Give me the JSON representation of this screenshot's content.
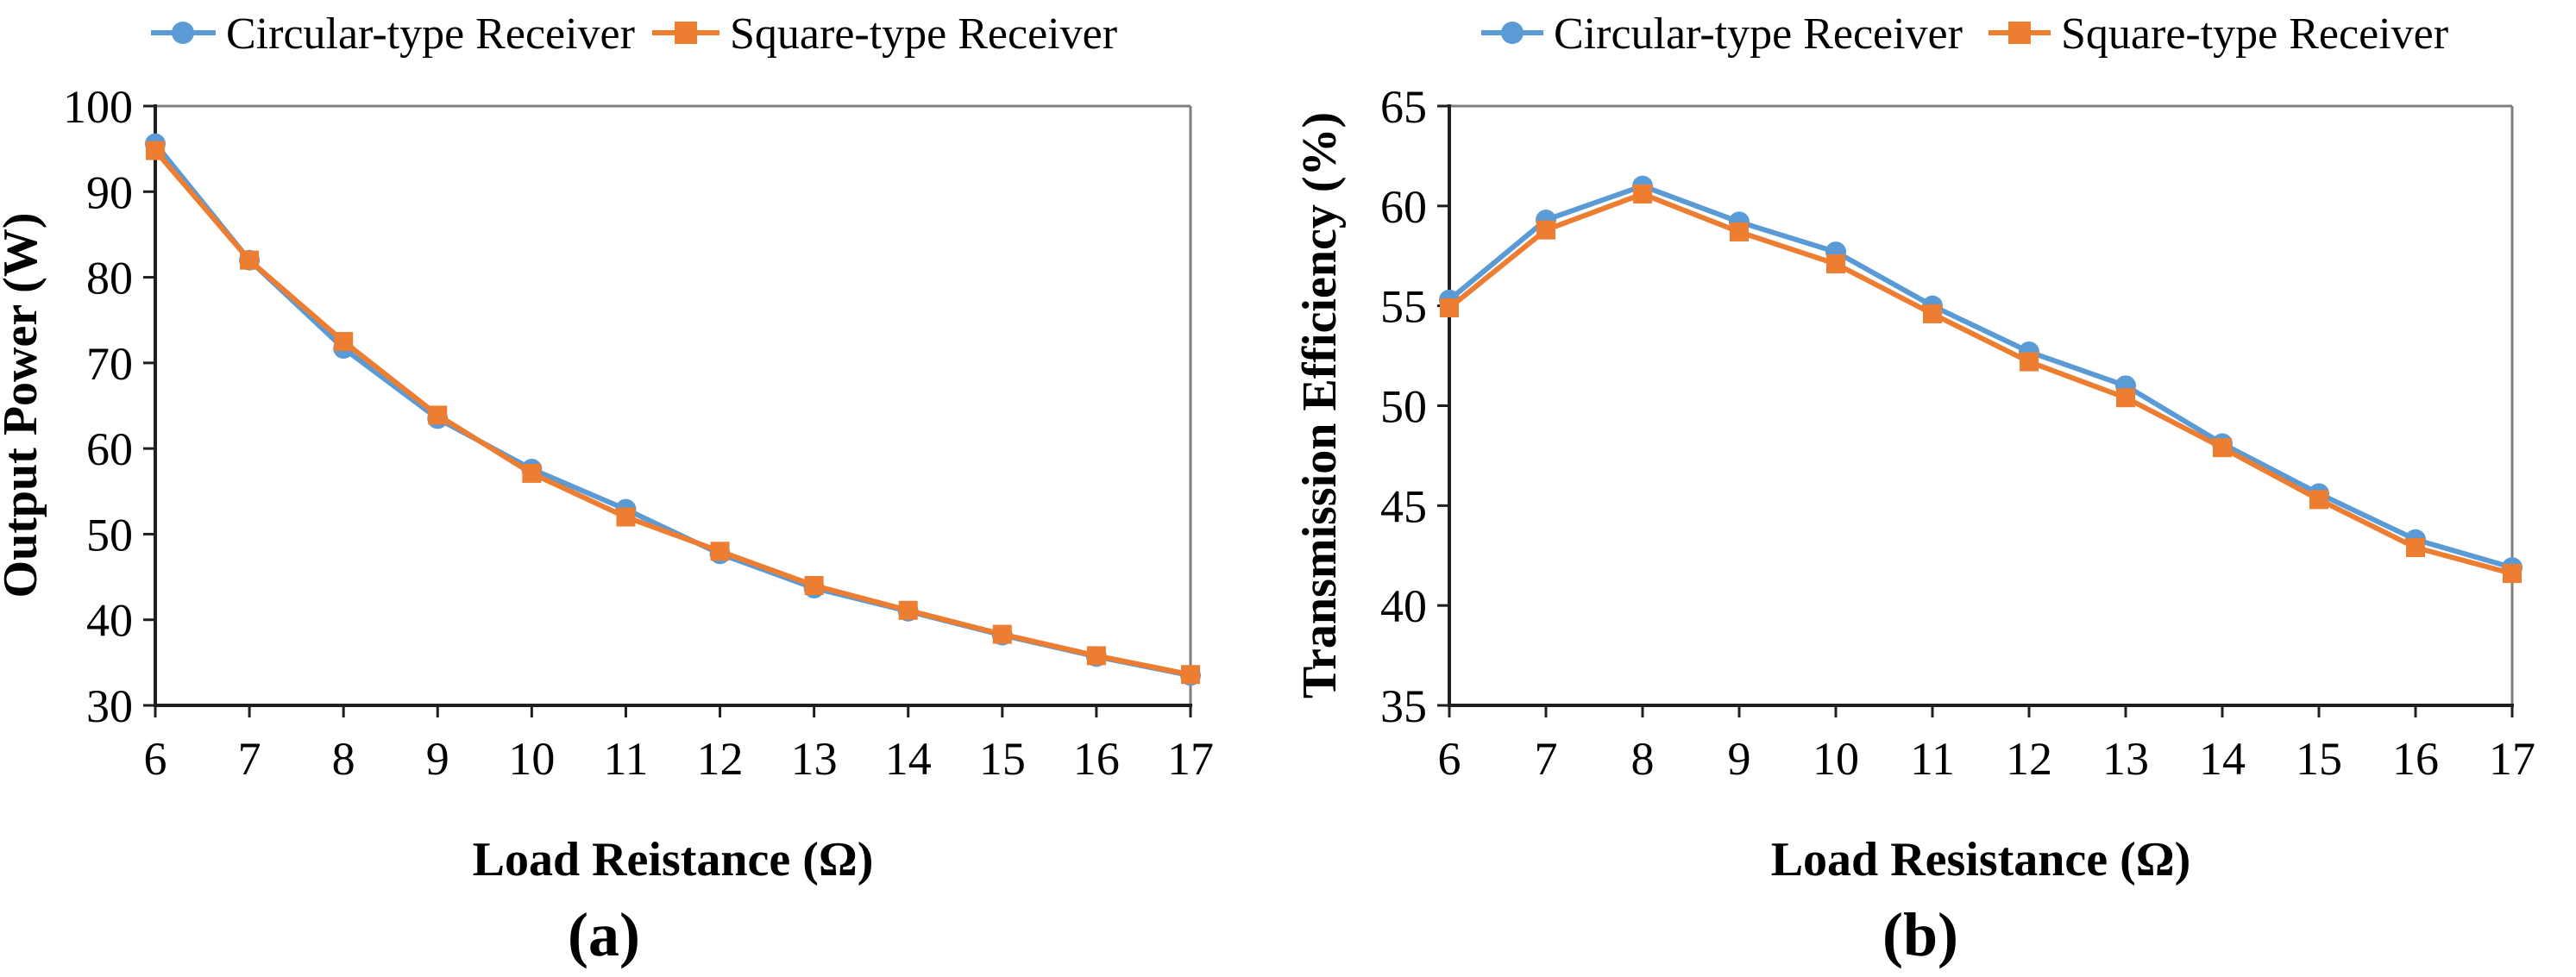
{
  "figure": {
    "background": "#ffffff",
    "captions": {
      "left": "(a)",
      "right": "(b)"
    }
  },
  "colors": {
    "circular_series": "#5B9BD5",
    "square_series": "#ED7D31",
    "axis_line": "#1f1f1f",
    "plot_border": "#7f7f7f",
    "text": "#000000"
  },
  "chart_data": [
    {
      "type": "line",
      "caption": "(a)",
      "title": "",
      "xlabel": "Load Reistance (Ω)",
      "ylabel": "Output Power (W)",
      "xlim": [
        6,
        17
      ],
      "ylim": [
        30,
        100
      ],
      "xticks": [
        6,
        7,
        8,
        9,
        10,
        11,
        12,
        13,
        14,
        15,
        16,
        17
      ],
      "yticks": [
        30,
        40,
        50,
        60,
        70,
        80,
        90,
        100
      ],
      "grid": false,
      "legend_position": "top",
      "x": [
        6,
        7,
        8,
        9,
        10,
        11,
        12,
        13,
        14,
        15,
        16,
        17
      ],
      "series": [
        {
          "name": "Circular-type Receiver",
          "marker": "circle",
          "color": "#5B9BD5",
          "values": [
            95.6,
            82.0,
            71.7,
            63.5,
            57.6,
            52.9,
            47.7,
            43.7,
            41.0,
            38.2,
            35.7,
            33.5
          ]
        },
        {
          "name": "Square-type Receiver",
          "marker": "square",
          "color": "#ED7D31",
          "values": [
            94.8,
            82.0,
            72.5,
            63.9,
            57.1,
            52.0,
            48.0,
            44.0,
            41.1,
            38.3,
            35.8,
            33.6
          ]
        }
      ]
    },
    {
      "type": "line",
      "caption": "(b)",
      "title": "",
      "xlabel": "Load Resistance (Ω)",
      "ylabel": "Transmission Efficiency (%)",
      "xlim": [
        6,
        17
      ],
      "ylim": [
        35,
        65
      ],
      "xticks": [
        6,
        7,
        8,
        9,
        10,
        11,
        12,
        13,
        14,
        15,
        16,
        17
      ],
      "yticks": [
        35,
        40,
        45,
        50,
        55,
        60,
        65
      ],
      "grid": false,
      "legend_position": "top",
      "x": [
        6,
        7,
        8,
        9,
        10,
        11,
        12,
        13,
        14,
        15,
        16,
        17
      ],
      "series": [
        {
          "name": "Circular-type Receiver",
          "marker": "circle",
          "color": "#5B9BD5",
          "values": [
            55.3,
            59.3,
            61.0,
            59.2,
            57.7,
            55.0,
            52.7,
            51.0,
            48.1,
            45.6,
            43.3,
            41.9
          ]
        },
        {
          "name": "Square-type Receiver",
          "marker": "square",
          "color": "#ED7D31",
          "values": [
            54.9,
            58.8,
            60.6,
            58.7,
            57.1,
            54.6,
            52.2,
            50.4,
            47.9,
            45.3,
            42.9,
            41.6
          ]
        }
      ]
    }
  ]
}
